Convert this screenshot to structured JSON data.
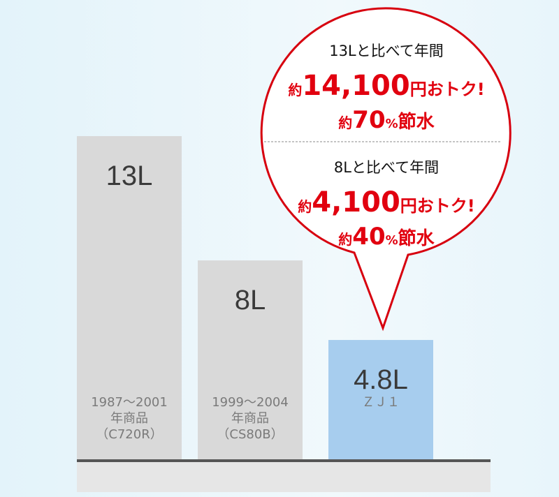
{
  "chart_data": {
    "type": "bar",
    "categories": [
      "1987～2001\n年商品\n（C720R）",
      "1999～2004\n年商品\n（CS80B）",
      "ＺＪ１"
    ],
    "values": [
      13,
      8,
      4.8
    ],
    "value_labels": [
      "13L",
      "8L",
      "4.8L"
    ],
    "colors": [
      "#d9d9d9",
      "#d9d9d9",
      "#a7cdee"
    ],
    "callout": [
      {
        "heading": "13Lと比べて年間",
        "savings": [
          "約",
          "14,100",
          "円おトク!"
        ],
        "water": [
          "約",
          "70",
          "%",
          "節水"
        ]
      },
      {
        "heading": "8Lと比べて年間",
        "savings": [
          "約",
          "4,100",
          "円おトク!"
        ],
        "water": [
          "約",
          "40",
          "%",
          "節水"
        ]
      }
    ]
  }
}
